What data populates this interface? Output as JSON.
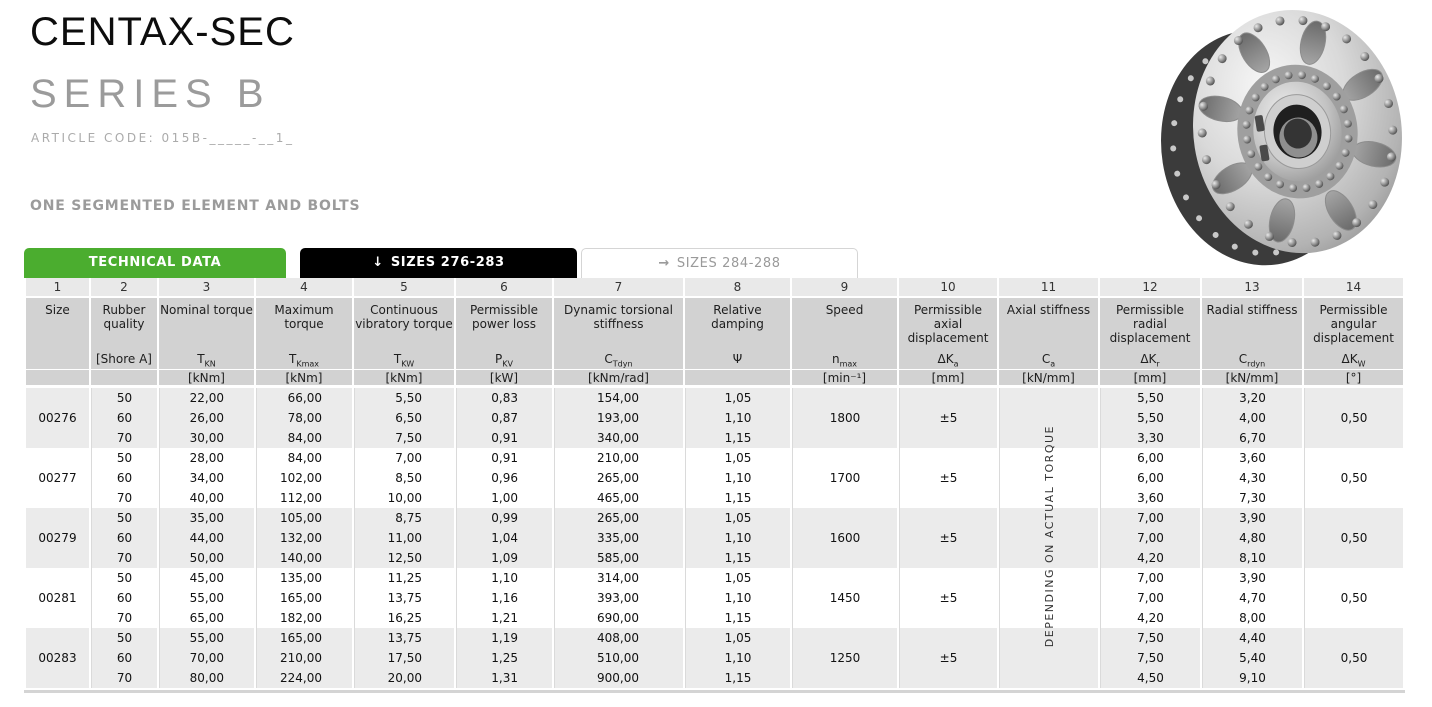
{
  "page": {
    "title": "CENTAX-SEC",
    "subtitle": "SERIES B",
    "article_code": "ARTICLE CODE: 015B-_____-__1_",
    "section_label": "ONE SEGMENTED ELEMENT AND BOLTS"
  },
  "tabs": [
    {
      "label": "TECHNICAL DATA"
    },
    {
      "arrow": "↓",
      "label": "SIZES 276-283"
    },
    {
      "arrow": "→",
      "label": "SIZES 284-288"
    }
  ],
  "colors": {
    "accent_green": "#4bad2f",
    "tab_black": "#000000",
    "header_gray": "#d2d2d2",
    "row_gray": "#ebebeb"
  },
  "table": {
    "column_numbers": [
      "1",
      "2",
      "3",
      "4",
      "5",
      "6",
      "7",
      "8",
      "9",
      "10",
      "11",
      "12",
      "13",
      "14"
    ],
    "columns": [
      {
        "name": "Size",
        "sym": "",
        "sub": "",
        "unit": ""
      },
      {
        "name": "Rubber quality",
        "sym": "[Shore A]",
        "sub": "",
        "unit": ""
      },
      {
        "name": "Nominal torque",
        "sym": "T",
        "sub": "KN",
        "unit": "[kNm]"
      },
      {
        "name": "Maximum torque",
        "sym": "T",
        "sub": "Kmax",
        "unit": "[kNm]"
      },
      {
        "name": "Continuous vibratory torque",
        "sym": "T",
        "sub": "KW",
        "unit": "[kNm]"
      },
      {
        "name": "Permissible power loss",
        "sym": "P",
        "sub": "KV",
        "unit": "[kW]"
      },
      {
        "name": "Dynamic torsional stiffness",
        "sym": "C",
        "sub": "Tdyn",
        "unit": "[kNm/rad]"
      },
      {
        "name": "Relative damping",
        "sym": "Ψ",
        "sub": "",
        "unit": ""
      },
      {
        "name": "Speed",
        "sym": "n",
        "sub": "max",
        "unit": "[min⁻¹]"
      },
      {
        "name": "Permissible axial displacement",
        "sym": "ΔK",
        "sub": "a",
        "unit": "[mm]"
      },
      {
        "name": "Axial stiffness",
        "sym": "C",
        "sub": "a",
        "unit": "[kN/mm]"
      },
      {
        "name": "Permissible radial displacement",
        "sym": "ΔK",
        "sub": "r",
        "unit": "[mm]"
      },
      {
        "name": "Radial stiffness",
        "sym": "C",
        "sub": "rdyn",
        "unit": "[kN/mm]"
      },
      {
        "name": "Permissible angular displacement",
        "sym": "ΔK",
        "sub": "W",
        "unit": "[°]"
      }
    ],
    "axial_stiffness_note": "DEPENDING ON ACTUAL TORQUE",
    "groups": [
      {
        "size": "00276",
        "speed": "1800",
        "axial_displacement": "±5",
        "angular_displacement": "0,50",
        "rows": [
          [
            "50",
            "22,00",
            "66,00",
            "5,50",
            "0,83",
            "154,00",
            "1,05",
            "5,50",
            "3,20"
          ],
          [
            "60",
            "26,00",
            "78,00",
            "6,50",
            "0,87",
            "193,00",
            "1,10",
            "5,50",
            "4,00"
          ],
          [
            "70",
            "30,00",
            "84,00",
            "7,50",
            "0,91",
            "340,00",
            "1,15",
            "3,30",
            "6,70"
          ]
        ]
      },
      {
        "size": "00277",
        "speed": "1700",
        "axial_displacement": "±5",
        "angular_displacement": "0,50",
        "rows": [
          [
            "50",
            "28,00",
            "84,00",
            "7,00",
            "0,91",
            "210,00",
            "1,05",
            "6,00",
            "3,60"
          ],
          [
            "60",
            "34,00",
            "102,00",
            "8,50",
            "0,96",
            "265,00",
            "1,10",
            "6,00",
            "4,30"
          ],
          [
            "70",
            "40,00",
            "112,00",
            "10,00",
            "1,00",
            "465,00",
            "1,15",
            "3,60",
            "7,30"
          ]
        ]
      },
      {
        "size": "00279",
        "speed": "1600",
        "axial_displacement": "±5",
        "angular_displacement": "0,50",
        "rows": [
          [
            "50",
            "35,00",
            "105,00",
            "8,75",
            "0,99",
            "265,00",
            "1,05",
            "7,00",
            "3,90"
          ],
          [
            "60",
            "44,00",
            "132,00",
            "11,00",
            "1,04",
            "335,00",
            "1,10",
            "7,00",
            "4,80"
          ],
          [
            "70",
            "50,00",
            "140,00",
            "12,50",
            "1,09",
            "585,00",
            "1,15",
            "4,20",
            "8,10"
          ]
        ]
      },
      {
        "size": "00281",
        "speed": "1450",
        "axial_displacement": "±5",
        "angular_displacement": "0,50",
        "rows": [
          [
            "50",
            "45,00",
            "135,00",
            "11,25",
            "1,10",
            "314,00",
            "1,05",
            "7,00",
            "3,90"
          ],
          [
            "60",
            "55,00",
            "165,00",
            "13,75",
            "1,16",
            "393,00",
            "1,10",
            "7,00",
            "4,70"
          ],
          [
            "70",
            "65,00",
            "182,00",
            "16,25",
            "1,21",
            "690,00",
            "1,15",
            "4,20",
            "8,00"
          ]
        ]
      },
      {
        "size": "00283",
        "speed": "1250",
        "axial_displacement": "±5",
        "angular_displacement": "0,50",
        "rows": [
          [
            "50",
            "55,00",
            "165,00",
            "13,75",
            "1,19",
            "408,00",
            "1,05",
            "7,50",
            "4,40"
          ],
          [
            "60",
            "70,00",
            "210,00",
            "17,50",
            "1,25",
            "510,00",
            "1,10",
            "7,50",
            "5,40"
          ],
          [
            "70",
            "80,00",
            "224,00",
            "20,00",
            "1,31",
            "900,00",
            "1,15",
            "4,50",
            "9,10"
          ]
        ]
      }
    ]
  }
}
